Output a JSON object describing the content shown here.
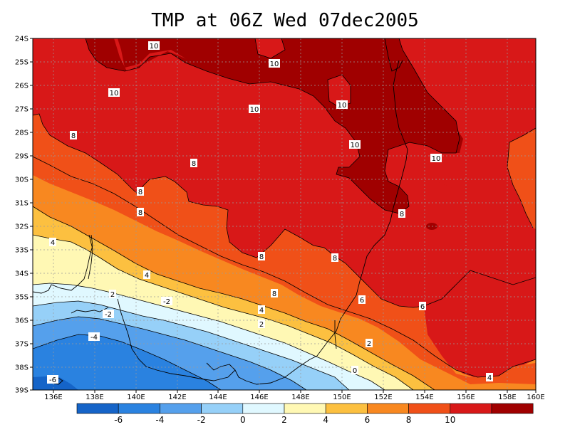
{
  "title": "TMP at 06Z Wed 07dec2005",
  "map": {
    "lat_labels": [
      "24S",
      "25S",
      "26S",
      "27S",
      "28S",
      "29S",
      "30S",
      "31S",
      "32S",
      "33S",
      "34S",
      "35S",
      "36S",
      "37S",
      "38S",
      "39S"
    ],
    "lon_labels": [
      "136E",
      "138E",
      "140E",
      "142E",
      "144E",
      "146E",
      "148E",
      "150E",
      "152E",
      "154E",
      "156E",
      "158E",
      "160E"
    ],
    "grid": "dotted",
    "contour_labels": [
      "10",
      "10",
      "10",
      "10",
      "10",
      "10",
      "10",
      "8",
      "8",
      "8",
      "8",
      "8",
      "8",
      "8",
      "8",
      "6",
      "6",
      "4",
      "4",
      "4",
      "4",
      "2",
      "2",
      "2",
      "0",
      "-2",
      "-2",
      "-4",
      "-6"
    ]
  },
  "colorbar": {
    "labels": [
      "-6",
      "-4",
      "-2",
      "0",
      "2",
      "4",
      "6",
      "8",
      "10"
    ],
    "colors": [
      "#1564c8",
      "#2a82e0",
      "#55a0ec",
      "#96d0f8",
      "#e0f8ff",
      "#fff8b4",
      "#fcc040",
      "#f88820",
      "#f05018",
      "#d81818",
      "#a00000"
    ]
  },
  "colors": {
    "c10": "#a00000",
    "c8": "#d81818",
    "c6": "#f05018",
    "c4": "#f88820",
    "c2": "#fcc040",
    "c0": "#fff8b4",
    "cm2": "#e0f8ff",
    "cm4": "#96d0f8",
    "cm6": "#55a0ec",
    "cm8": "#2a82e0",
    "cm10": "#1564c8"
  }
}
